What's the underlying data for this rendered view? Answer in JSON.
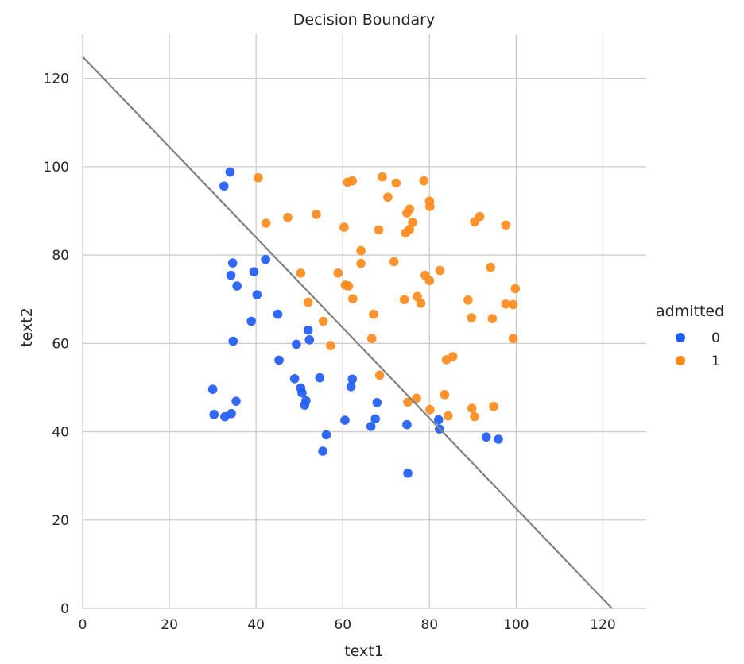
{
  "chart_data": {
    "type": "scatter",
    "title": "Decision Boundary",
    "xlabel": "text1",
    "ylabel": "text2",
    "xlim": [
      0,
      130
    ],
    "ylim": [
      0,
      130
    ],
    "xticks": [
      0,
      20,
      40,
      60,
      80,
      100,
      120
    ],
    "yticks": [
      0,
      20,
      40,
      60,
      80,
      100,
      120
    ],
    "grid": true,
    "legend": {
      "title": "admitted",
      "placement": "right",
      "entries": [
        {
          "label": "0",
          "color": "#1f5cf5"
        },
        {
          "label": "1",
          "color": "#ff8a1c"
        }
      ]
    },
    "series": [
      {
        "name": "0",
        "color": "#1f5cf5",
        "points": [
          [
            34,
            98.8
          ],
          [
            32.6,
            95.6
          ],
          [
            34.6,
            78.2
          ],
          [
            42.2,
            79
          ],
          [
            34.2,
            75.4
          ],
          [
            39.5,
            76.2
          ],
          [
            35.6,
            73
          ],
          [
            40.2,
            71
          ],
          [
            45,
            66.6
          ],
          [
            38.9,
            65
          ],
          [
            52,
            63
          ],
          [
            52.3,
            60.8
          ],
          [
            34.7,
            60.5
          ],
          [
            49.3,
            59.8
          ],
          [
            45.3,
            56.2
          ],
          [
            48.9,
            52
          ],
          [
            54.7,
            52.2
          ],
          [
            62.2,
            51.9
          ],
          [
            30,
            49.6
          ],
          [
            50.3,
            49.9
          ],
          [
            61.9,
            50.2
          ],
          [
            50.6,
            48.8
          ],
          [
            35.4,
            46.9
          ],
          [
            51.5,
            47
          ],
          [
            51.2,
            46
          ],
          [
            67.9,
            46.6
          ],
          [
            30.3,
            43.9
          ],
          [
            34.3,
            44.1
          ],
          [
            32.8,
            43.4
          ],
          [
            60.5,
            42.6
          ],
          [
            67.5,
            42.9
          ],
          [
            66.5,
            41.2
          ],
          [
            74.8,
            41.6
          ],
          [
            82.1,
            42.7
          ],
          [
            82.3,
            40.6
          ],
          [
            56.2,
            39.3
          ],
          [
            93.1,
            38.8
          ],
          [
            95.9,
            38.3
          ],
          [
            55.4,
            35.6
          ],
          [
            75,
            30.6
          ]
        ]
      },
      {
        "name": "1",
        "color": "#ff8a1c",
        "points": [
          [
            40.5,
            97.5
          ],
          [
            69.1,
            97.7
          ],
          [
            62.2,
            96.8
          ],
          [
            61.1,
            96.5
          ],
          [
            72.3,
            96.3
          ],
          [
            78.7,
            96.8
          ],
          [
            70.4,
            93.1
          ],
          [
            80,
            92.2
          ],
          [
            80.1,
            91
          ],
          [
            75.4,
            90.4
          ],
          [
            74.8,
            89.5
          ],
          [
            53.9,
            89.2
          ],
          [
            47.3,
            88.5
          ],
          [
            91.6,
            88.7
          ],
          [
            90.4,
            87.5
          ],
          [
            76.1,
            87.4
          ],
          [
            42.3,
            87.2
          ],
          [
            97.6,
            86.8
          ],
          [
            60.3,
            86.3
          ],
          [
            68.3,
            85.7
          ],
          [
            75.4,
            85.8
          ],
          [
            74.5,
            85
          ],
          [
            64.2,
            81
          ],
          [
            71.8,
            78.5
          ],
          [
            64.2,
            78.1
          ],
          [
            94.1,
            77.2
          ],
          [
            82.4,
            76.5
          ],
          [
            50.3,
            75.9
          ],
          [
            58.9,
            75.9
          ],
          [
            79,
            75.4
          ],
          [
            80,
            74.2
          ],
          [
            60.6,
            73.2
          ],
          [
            61.3,
            73
          ],
          [
            99.8,
            72.4
          ],
          [
            62.3,
            70.1
          ],
          [
            77.2,
            70.6
          ],
          [
            52,
            69.3
          ],
          [
            74.2,
            69.9
          ],
          [
            88.9,
            69.8
          ],
          [
            78,
            69.1
          ],
          [
            97.6,
            68.9
          ],
          [
            99.3,
            68.8
          ],
          [
            67.1,
            66.6
          ],
          [
            89.7,
            65.8
          ],
          [
            94.5,
            65.6
          ],
          [
            55.5,
            65
          ],
          [
            57.2,
            59.5
          ],
          [
            66.7,
            61.1
          ],
          [
            99.3,
            61.1
          ],
          [
            85.4,
            57
          ],
          [
            83.9,
            56.3
          ],
          [
            68.5,
            52.8
          ],
          [
            83.5,
            48.4
          ],
          [
            77,
            47.6
          ],
          [
            75,
            46.7
          ],
          [
            89.8,
            45.3
          ],
          [
            94.8,
            45.7
          ],
          [
            80.1,
            45
          ],
          [
            84.3,
            43.6
          ],
          [
            90.4,
            43.4
          ]
        ]
      }
    ],
    "decision_boundary": {
      "x": [
        0,
        122.1
      ],
      "y": [
        124.9,
        0
      ],
      "color": "#808080"
    }
  }
}
